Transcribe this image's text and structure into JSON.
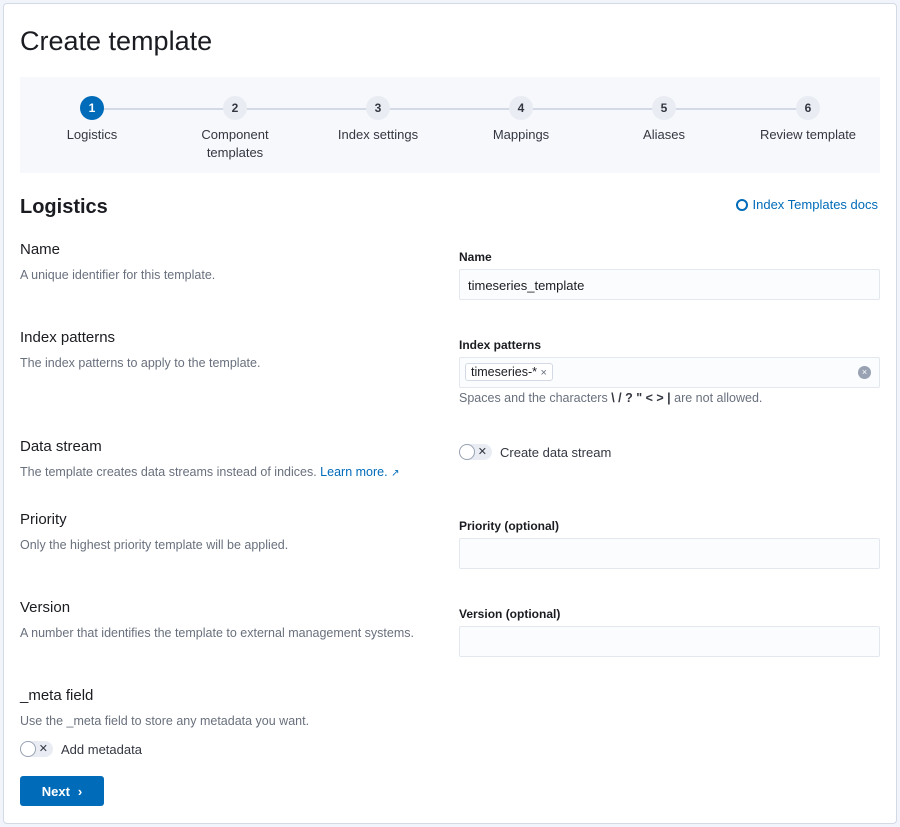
{
  "title": "Create template",
  "steps": [
    {
      "num": "1",
      "label": "Logistics"
    },
    {
      "num": "2",
      "label": "Component templates"
    },
    {
      "num": "3",
      "label": "Index settings"
    },
    {
      "num": "4",
      "label": "Mappings"
    },
    {
      "num": "5",
      "label": "Aliases"
    },
    {
      "num": "6",
      "label": "Review template"
    }
  ],
  "section_title": "Logistics",
  "docs_link": "Index Templates docs",
  "name": {
    "title": "Name",
    "desc": "A unique identifier for this template.",
    "label": "Name",
    "value": "timeseries_template"
  },
  "index_patterns": {
    "title": "Index patterns",
    "desc": "The index patterns to apply to the template.",
    "label": "Index patterns",
    "chip": "timeseries-*",
    "help_pre": "Spaces and the characters",
    "help_chars": "\\ / ? \" < > |",
    "help_post": "are not allowed."
  },
  "data_stream": {
    "title": "Data stream",
    "desc": "The template creates data streams instead of indices.",
    "learn_more": "Learn more.",
    "toggle_label": "Create data stream",
    "enabled": false
  },
  "priority": {
    "title": "Priority",
    "desc": "Only the highest priority template will be applied.",
    "label": "Priority (optional)",
    "value": ""
  },
  "version": {
    "title": "Version",
    "desc": "A number that identifies the template to external management systems.",
    "label": "Version (optional)",
    "value": ""
  },
  "meta": {
    "title": "_meta field",
    "desc": "Use the _meta field to store any metadata you want.",
    "toggle_label": "Add metadata",
    "enabled": false
  },
  "next_label": "Next",
  "colors": {
    "primary": "#006bb8"
  }
}
